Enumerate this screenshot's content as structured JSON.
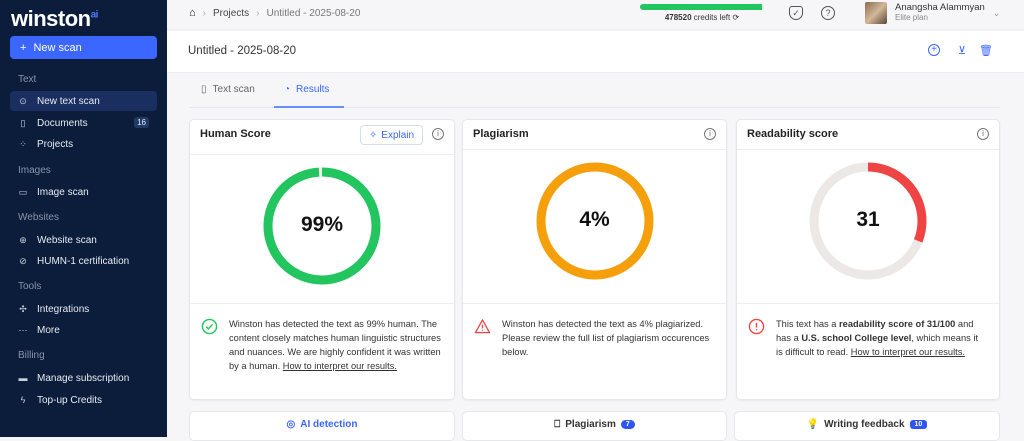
{
  "brand": {
    "name": "winston",
    "suffix": "ai"
  },
  "sidebar": {
    "new_scan": "New scan",
    "sections": {
      "text": "Text",
      "images": "Images",
      "websites": "Websites",
      "tools": "Tools",
      "billing": "Billing"
    },
    "items": [
      {
        "label": "New text scan",
        "icon": "target-icon"
      },
      {
        "label": "Documents",
        "icon": "document-icon",
        "badge": "16"
      },
      {
        "label": "Projects",
        "icon": "grid-icon"
      },
      {
        "label": "Image scan",
        "icon": "image-icon"
      },
      {
        "label": "Website scan",
        "icon": "globe-icon"
      },
      {
        "label": "HUMN-1 certification",
        "icon": "check-circle-icon"
      },
      {
        "label": "Integrations",
        "icon": "puzzle-icon"
      },
      {
        "label": "More",
        "icon": "dots-icon"
      },
      {
        "label": "Manage subscription",
        "icon": "card-icon"
      },
      {
        "label": "Top-up Credits",
        "icon": "bolt-icon"
      }
    ]
  },
  "topbar": {
    "breadcrumb": [
      "Projects",
      "Untitled - 2025-08-20"
    ],
    "credits_count": "478520",
    "credits_label": "credits left",
    "credits_fraction": 0.98,
    "user_name": "Anangsha Alammyan",
    "user_plan": "Elite plan"
  },
  "document": {
    "title": "Untitled - 2025-08-20"
  },
  "tabs": [
    "Text scan",
    "Results"
  ],
  "cards": {
    "human": {
      "title": "Human Score",
      "explain": "Explain",
      "score": "99%",
      "value": 99,
      "color": "#22c55e",
      "msg": "Winston has detected the text as 99% human. The content closely matches human linguistic structures and nuances. We are highly confident it was written by a human. ",
      "link": "How to interpret our results."
    },
    "plagiarism": {
      "title": "Plagiarism",
      "score": "4%",
      "value": 100,
      "color": "#f5a00b",
      "msg": "Winston has detected the text as 4% plagiarized. Please review the full list of plagiarism occurences below."
    },
    "readability": {
      "title": "Readability score",
      "score": "31",
      "value": 31,
      "color": "#ef4444",
      "track": "#ebe8e5",
      "msg1": "This text has a ",
      "bold1": "readability score of 31/100",
      "msg2": " and has a ",
      "bold2": "U.S. school College level",
      "msg3": ", which means it is difficult to read. ",
      "link": "How to interpret our results."
    }
  },
  "bottom_tabs": [
    {
      "label": "AI detection"
    },
    {
      "label": "Plagiarism",
      "badge": "7"
    },
    {
      "label": "Writing feedback",
      "badge": "10"
    }
  ]
}
